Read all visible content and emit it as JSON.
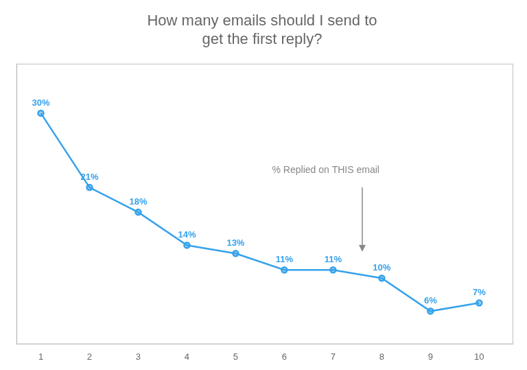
{
  "chart_data": {
    "type": "line",
    "title": [
      "How many emails should I send to",
      "get the first reply?"
    ],
    "x": [
      1,
      2,
      3,
      4,
      5,
      6,
      7,
      8,
      9,
      10
    ],
    "values": [
      30,
      21,
      18,
      14,
      13,
      11,
      11,
      10,
      6,
      7
    ],
    "value_labels": [
      "30%",
      "21%",
      "18%",
      "14%",
      "13%",
      "11%",
      "11%",
      "10%",
      "6%",
      "7%"
    ],
    "data_labels": true,
    "marker": "circle",
    "xlim": [
      0.5,
      10.7
    ],
    "xticks": [
      1,
      2,
      3,
      4,
      5,
      6,
      7,
      8,
      9,
      10
    ],
    "ylim": [
      2.0,
      36.0
    ],
    "tick_labels": "x",
    "grid": false,
    "annotations": [
      {
        "text": "% Replied on THIS email",
        "x": 6.85,
        "y": 22.5,
        "arrow": {
          "x": 7.6,
          "from": 21.0,
          "to": 13.2
        }
      }
    ]
  }
}
